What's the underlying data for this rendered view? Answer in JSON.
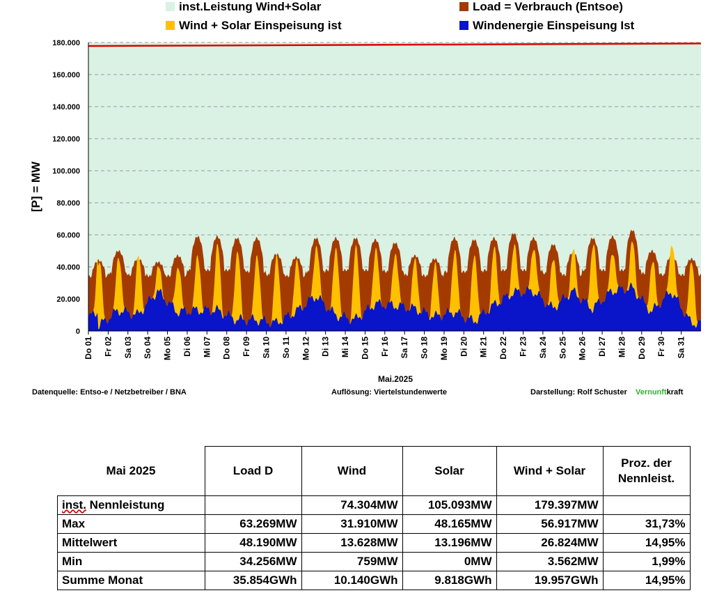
{
  "legend": [
    {
      "label": "inst.Leistung Wind+Solar",
      "color": "#d9f2e4"
    },
    {
      "label": "Load =  Verbrauch (Entsoe)",
      "color": "#a33a00"
    },
    {
      "label": "Wind + Solar Einspeisung ist",
      "color": "#ffc000"
    },
    {
      "label": "Windenergie Einspeisung Ist",
      "color": "#0a14c8"
    }
  ],
  "colors": {
    "installed": "#d9f2e4",
    "load": "#a33a00",
    "solar": "#ffc000",
    "wind": "#0a14c8",
    "capacity_line": "#e00000",
    "grid": "#9a9a9a"
  },
  "chart_data": {
    "type": "area",
    "ylabel": "[P] = MW",
    "xlabel": "Mai.2025",
    "ylim": [
      0,
      180000
    ],
    "yticks": [
      "0",
      "20.000",
      "40.000",
      "60.000",
      "80.000",
      "100.000",
      "120.000",
      "140.000",
      "160.000",
      "180.000"
    ],
    "x_ticks": [
      "Do 01",
      "Fr 02",
      "Sa 03",
      "So 04",
      "Mo 05",
      "Di 06",
      "Mi 07",
      "Do 08",
      "Fr 09",
      "Sa 10",
      "So 11",
      "Mo 12",
      "Di 13",
      "Mi 14",
      "Do 15",
      "Fr 16",
      "Sa 17",
      "So 18",
      "Mo 19",
      "Di 20",
      "Mi 21",
      "Do 22",
      "Fr 23",
      "Sa 24",
      "So 25",
      "Mo 26",
      "Di 27",
      "Mi 28",
      "Do 29",
      "Fr 30",
      "Sa 31"
    ],
    "days": 31,
    "installed_capacity_start": 177800,
    "installed_capacity_end": 179397,
    "series": [
      {
        "name": "Load =  Verbrauch (Entsoe)",
        "daily_max": [
          44000,
          50000,
          45000,
          43000,
          47000,
          59000,
          59000,
          58000,
          58000,
          48000,
          46000,
          58000,
          58000,
          58000,
          57000,
          55000,
          47000,
          45000,
          58000,
          57000,
          58000,
          61000,
          58000,
          54000,
          49000,
          58000,
          59000,
          63000,
          50000,
          47000,
          45000
        ],
        "daily_min": [
          34000,
          36000,
          35000,
          34300,
          34500,
          38000,
          38000,
          38000,
          37000,
          35000,
          34300,
          37000,
          38000,
          38000,
          38000,
          37000,
          35000,
          34300,
          37000,
          37000,
          38000,
          38000,
          38000,
          36000,
          35000,
          38000,
          38000,
          38000,
          36000,
          35000,
          35000
        ]
      },
      {
        "name": "Windenergie Einspeisung Ist",
        "daily_avg": [
          3000,
          13000,
          10000,
          25000,
          12000,
          13000,
          13000,
          7000,
          7000,
          5000,
          12000,
          22000,
          10000,
          7000,
          17000,
          16000,
          14000,
          9000,
          12000,
          6000,
          16000,
          24000,
          25000,
          14000,
          25000,
          14000,
          25000,
          27000,
          12000,
          25000,
          5000
        ]
      },
      {
        "name": "Wind + Solar Einspeisung ist",
        "daily_peak": [
          44000,
          48000,
          45000,
          40000,
          42000,
          47000,
          52000,
          50000,
          49000,
          45000,
          42000,
          55000,
          52000,
          50000,
          51000,
          50000,
          44000,
          40000,
          52000,
          48000,
          50000,
          53000,
          54000,
          44000,
          50000,
          55000,
          50000,
          55000,
          42000,
          56917,
          43000
        ]
      }
    ]
  },
  "footer": {
    "source_label": "Datenquelle:  Entso-e  / Netzbetreiber / BNA",
    "resolution_label": "Auflösung: Viertelstundenwerte",
    "author_label": "Darstellung:  Rolf Schuster",
    "brand_green": "Vernunft",
    "brand_rest": "kraft"
  },
  "table": {
    "title": "Mai 2025",
    "headers": [
      "Load D",
      "Wind",
      "Solar",
      "Wind + Solar"
    ],
    "pct_header_1": "Proz. der",
    "pct_header_2": "Nennleist.",
    "rows": [
      {
        "label_a": "inst.",
        "label_b": " Nennleistung",
        "cells": [
          "",
          "74.304MW",
          "105.093MW",
          "179.397MW",
          ""
        ]
      },
      {
        "label": "Max",
        "cells": [
          "63.269MW",
          "31.910MW",
          "48.165MW",
          "56.917MW",
          "31,73%"
        ]
      },
      {
        "label": "Mittelwert",
        "cells": [
          "48.190MW",
          "13.628MW",
          "13.196MW",
          "26.824MW",
          "14,95%"
        ]
      },
      {
        "label": "Min",
        "cells": [
          "34.256MW",
          "759MW",
          "0MW",
          "3.562MW",
          "1,99%"
        ]
      },
      {
        "label": "Summe Monat",
        "cells": [
          "35.854GWh",
          "10.140GWh",
          "9.818GWh",
          "19.957GWh",
          "14,95%"
        ]
      }
    ]
  }
}
